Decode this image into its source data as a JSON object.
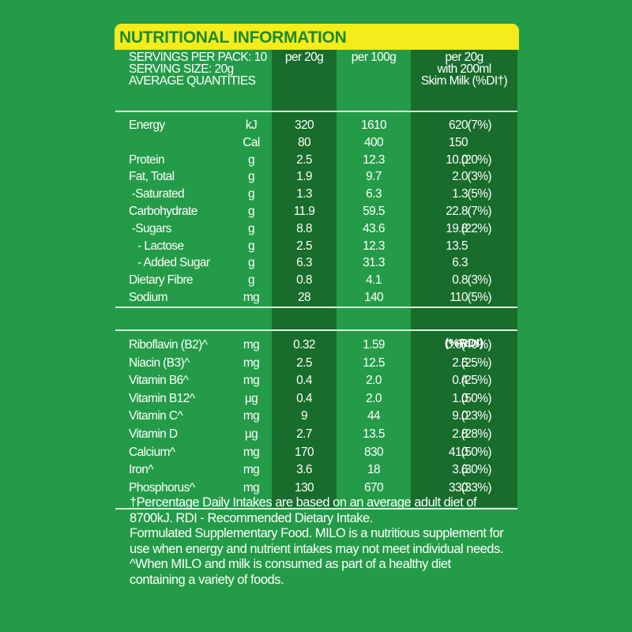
{
  "title": "NUTRITIONAL INFORMATION",
  "header": {
    "info_lines": [
      "SERVINGS PER PACK: 10",
      "SERVING SIZE: 20g",
      "AVERAGE QUANTITIES"
    ],
    "col1": "per 20g",
    "col2": "per 100g",
    "col3_lines": [
      "per 20g",
      "with 200ml",
      "Skim Milk (%DI†)"
    ]
  },
  "colors": {
    "background": "#249b48",
    "title_bar": "#f5ec1c",
    "title_text": "#1b8a30",
    "dark_column": "#186c2c",
    "text": "#ffffff"
  },
  "nutrients": [
    {
      "name": "Energy",
      "unit": "kJ",
      "per20": "320",
      "per100": "1610",
      "milk": "620",
      "pct": "(7%)"
    },
    {
      "name": "",
      "unit": "Cal",
      "per20": "80",
      "per100": "400",
      "milk": "150",
      "pct": ""
    },
    {
      "name": "Protein",
      "unit": "g",
      "per20": "2.5",
      "per100": "12.3",
      "milk": "10.0",
      "pct": "(20%)"
    },
    {
      "name": "Fat, Total",
      "unit": "g",
      "per20": "1.9",
      "per100": "9.7",
      "milk": "2.0",
      "pct": "(3%)"
    },
    {
      "name": " -Saturated",
      "unit": "g",
      "per20": "1.3",
      "per100": "6.3",
      "milk": "1.3",
      "pct": "(5%)"
    },
    {
      "name": "Carbohydrate",
      "unit": "g",
      "per20": "11.9",
      "per100": "59.5",
      "milk": "22.8",
      "pct": "(7%)"
    },
    {
      "name": " -Sugars",
      "unit": "g",
      "per20": "8.8",
      "per100": "43.6",
      "milk": "19.8",
      "pct": "(22%)"
    },
    {
      "name": "   - Lactose",
      "unit": "g",
      "per20": "2.5",
      "per100": "12.3",
      "milk": "13.5",
      "pct": ""
    },
    {
      "name": "   - Added Sugar",
      "unit": "g",
      "per20": "6.3",
      "per100": "31.3",
      "milk": "6.3",
      "pct": ""
    },
    {
      "name": "Dietary Fibre",
      "unit": "g",
      "per20": "0.8",
      "per100": "4.1",
      "milk": "0.8",
      "pct": "(3%)"
    },
    {
      "name": "Sodium",
      "unit": "mg",
      "per20": "28",
      "per100": "140",
      "milk": "110",
      "pct": "(5%)"
    }
  ],
  "rdi_label": "(%RDI)",
  "vitamins": [
    {
      "name": "Riboflavin (B2)^",
      "unit": "mg",
      "per20": "0.32",
      "per100": "1.59",
      "milk": "0.67",
      "pct": "(40%)"
    },
    {
      "name": "Niacin (B3)^",
      "unit": "mg",
      "per20": "2.5",
      "per100": "12.5",
      "milk": "2.5",
      "pct": "(25%)"
    },
    {
      "name": "Vitamin B6^",
      "unit": "mg",
      "per20": "0.4",
      "per100": "2.0",
      "milk": "0.4",
      "pct": "(25%)"
    },
    {
      "name": "Vitamin B12^",
      "unit": "µg",
      "per20": "0.4",
      "per100": "2.0",
      "milk": "1.0",
      "pct": "(50%)"
    },
    {
      "name": "Vitamin C^",
      "unit": "mg",
      "per20": "9",
      "per100": "44",
      "milk": "9.0",
      "pct": "(23%)"
    },
    {
      "name": "Vitamin D",
      "unit": "µg",
      "per20": "2.7",
      "per100": "13.5",
      "milk": "2.8",
      "pct": "(28%)"
    },
    {
      "name": "Calcium^",
      "unit": "mg",
      "per20": "170",
      "per100": "830",
      "milk": "410",
      "pct": "(50%)"
    },
    {
      "name": "Iron^",
      "unit": "mg",
      "per20": "3.6",
      "per100": "18",
      "milk": "3.6",
      "pct": "(30%)"
    },
    {
      "name": "Phosphorus^",
      "unit": "mg",
      "per20": "130",
      "per100": "670",
      "milk": "330",
      "pct": "(33%)"
    }
  ],
  "footnotes": [
    "†Percentage Daily Intakes are based on an average adult diet of",
    "8700kJ. RDI - Recommended Dietary Intake.",
    "Formulated Supplementary Food. MILO is a nutritious supplement for",
    "use when energy and nutrient intakes may not meet individual needs.",
    "^When MILO and milk is consumed as part of a healthy diet",
    "containing a variety of foods."
  ]
}
